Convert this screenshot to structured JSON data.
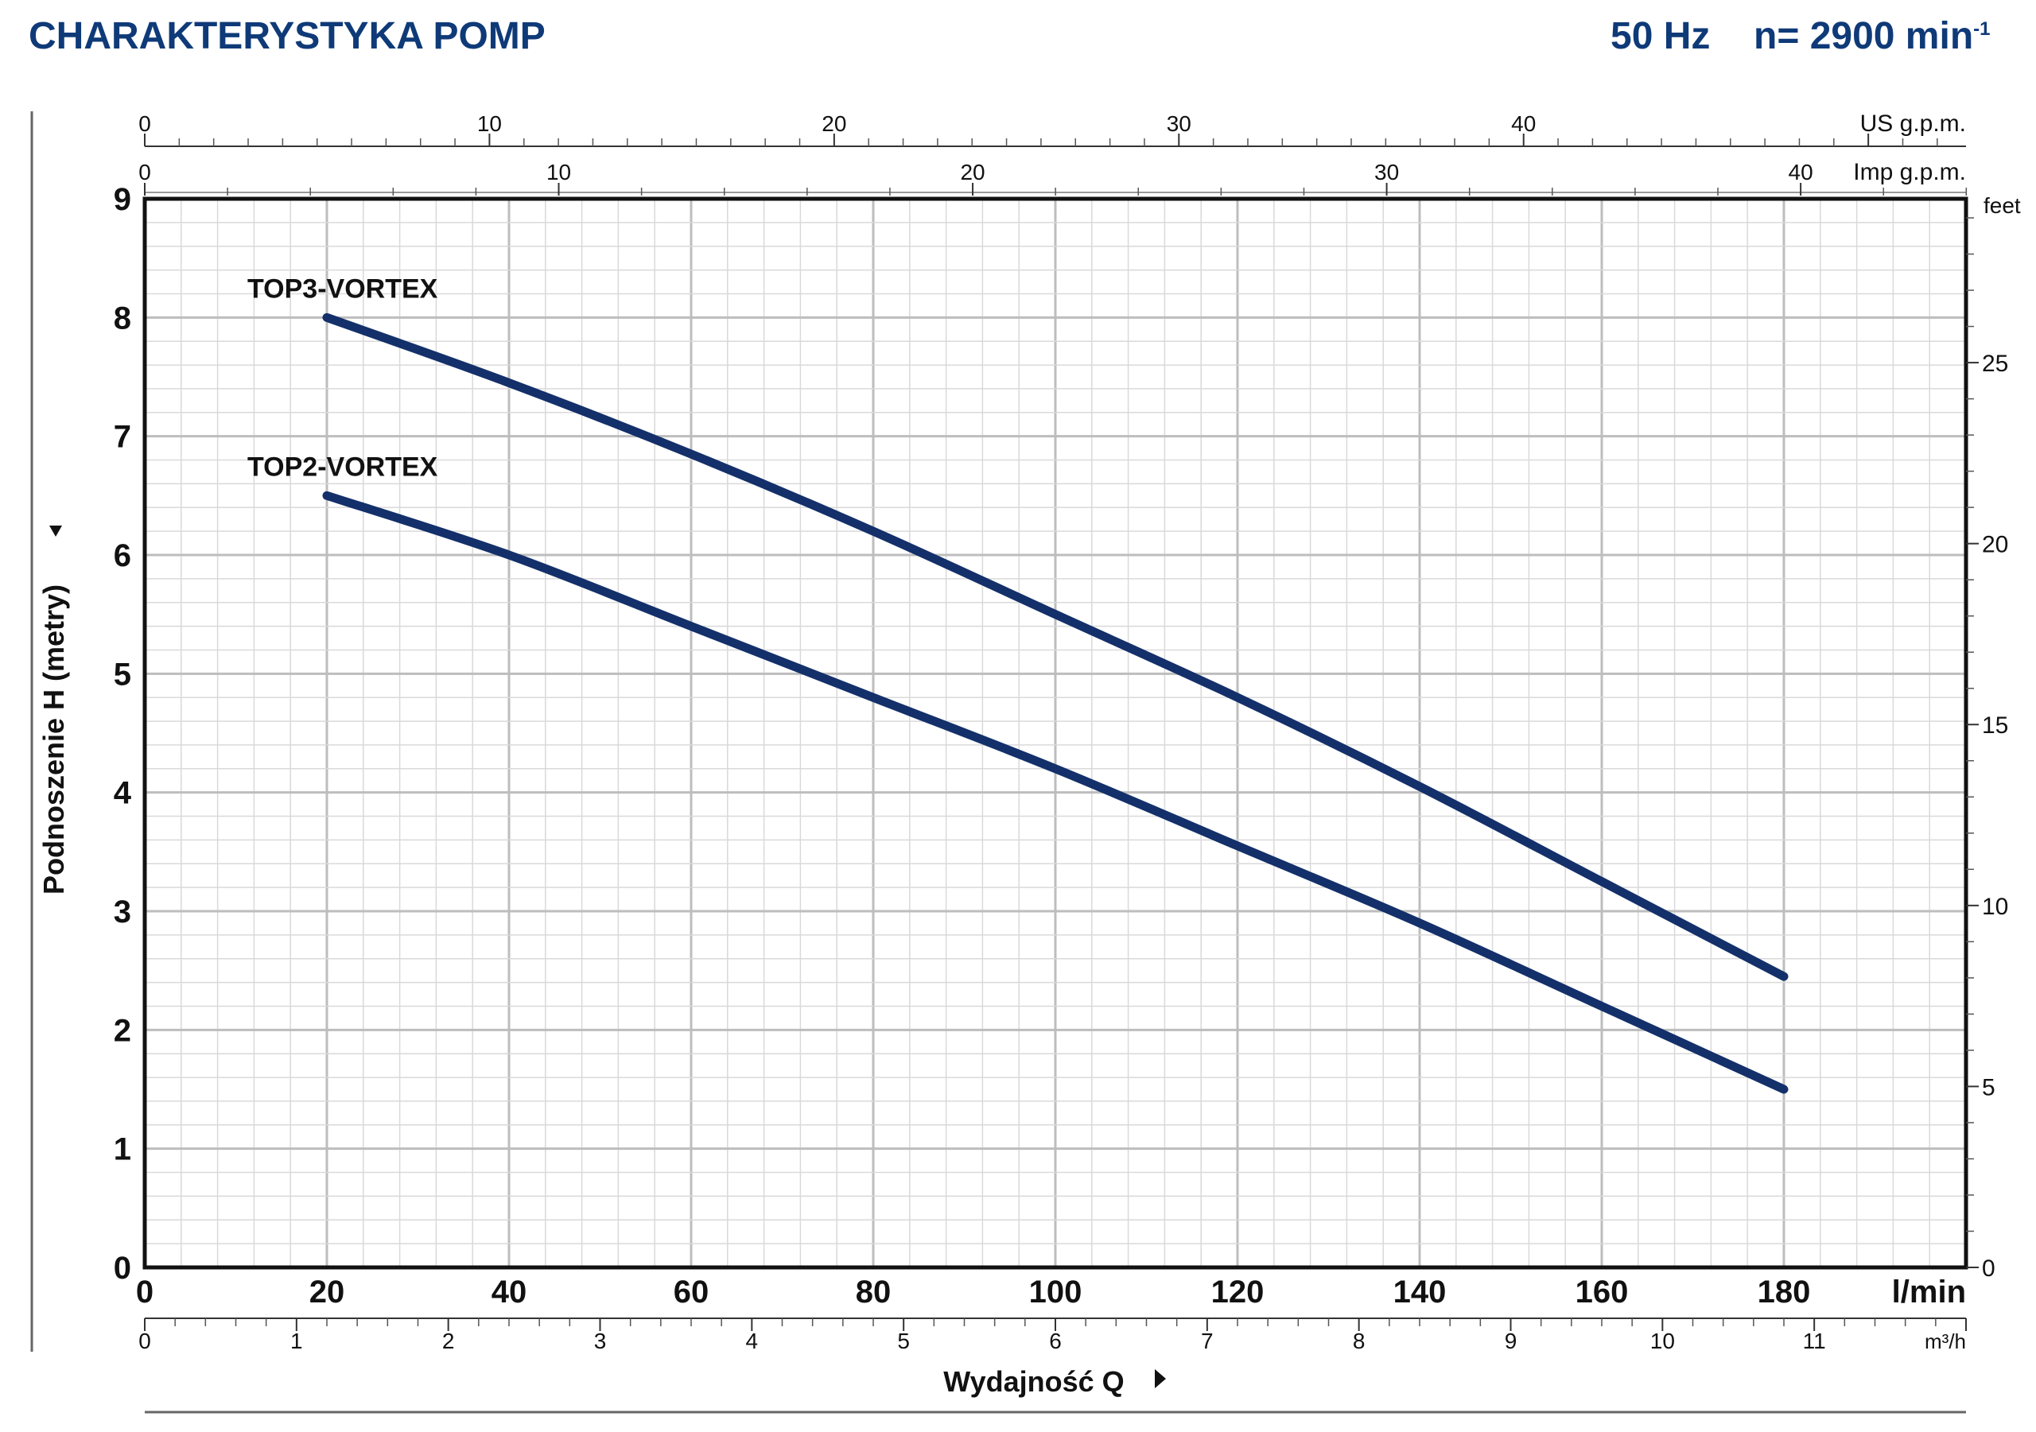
{
  "header": {
    "title": "CHARAKTERYSTYKA POMP",
    "frequency": "50 Hz",
    "speed_prefix": "n= 2900 min",
    "speed_exponent": "-1"
  },
  "chart_data": {
    "type": "line",
    "xlabel": "Wydajność Q",
    "ylabel": "Podnoszenie H (metry)",
    "x_unit": "l/min",
    "xlim": [
      0,
      200
    ],
    "ylim": [
      0,
      9
    ],
    "x_ticks": [
      0,
      20,
      40,
      60,
      80,
      100,
      120,
      140,
      160,
      180
    ],
    "y_ticks": [
      0,
      1,
      2,
      3,
      4,
      5,
      6,
      7,
      8,
      9
    ],
    "grid": true,
    "secondary_axes": {
      "top_us": {
        "unit": "US g.p.m.",
        "ticks": [
          0,
          10,
          20,
          30,
          40
        ]
      },
      "top_imp": {
        "unit": "Imp g.p.m.",
        "ticks": [
          0,
          10,
          20,
          30,
          40
        ]
      },
      "bottom_m3h": {
        "unit": "m³/h",
        "ticks": [
          0,
          1,
          2,
          3,
          4,
          5,
          6,
          7,
          8,
          9,
          10,
          11
        ]
      },
      "right_feet": {
        "unit": "feet",
        "ticks": [
          0,
          5,
          10,
          15,
          20,
          25
        ]
      }
    },
    "series": [
      {
        "name": "TOP3-VORTEX",
        "color": "#14306a",
        "x": [
          20,
          40,
          60,
          80,
          100,
          120,
          140,
          160,
          180
        ],
        "y": [
          8.0,
          7.45,
          6.85,
          6.2,
          5.5,
          4.8,
          4.05,
          3.25,
          2.45
        ]
      },
      {
        "name": "TOP2-VORTEX",
        "color": "#14306a",
        "x": [
          20,
          40,
          60,
          80,
          100,
          120,
          140,
          160,
          180
        ],
        "y": [
          6.5,
          6.0,
          5.4,
          4.8,
          4.2,
          3.55,
          2.9,
          2.2,
          1.5
        ]
      }
    ]
  }
}
